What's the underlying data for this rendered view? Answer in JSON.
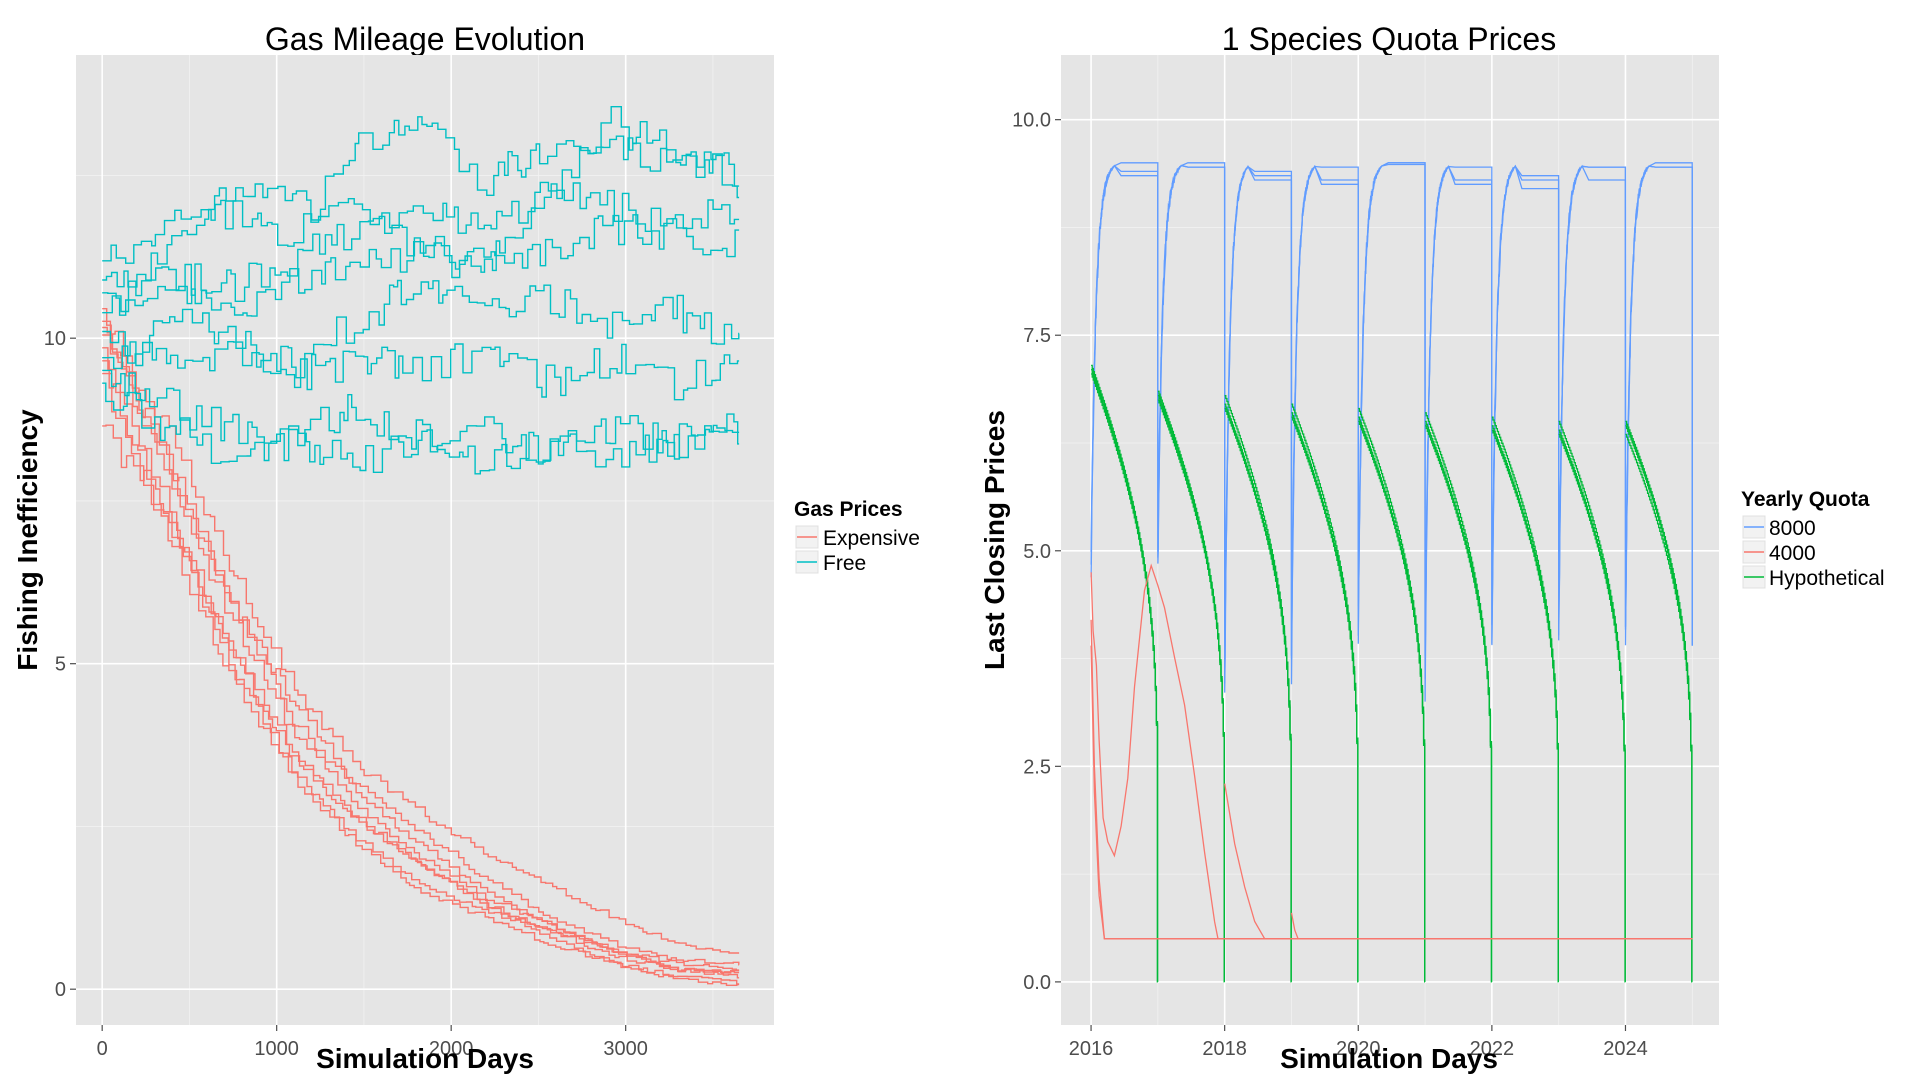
{
  "chart_data": [
    {
      "type": "line",
      "title": "Gas Mileage Evolution",
      "xlabel": "Simulation Days",
      "ylabel": "Fishing Inefficiency",
      "xlim": [
        -150,
        3850
      ],
      "ylim": [
        -0.55,
        14.35
      ],
      "xticks": [
        0,
        1000,
        2000,
        3000
      ],
      "xtick_labels": [
        "0",
        "1000",
        "2000",
        "3000"
      ],
      "yticks": [
        0,
        5,
        10
      ],
      "ytick_labels": [
        "0",
        "5",
        "10"
      ],
      "grid": true,
      "legend": {
        "title": "Gas Prices",
        "position": "right"
      },
      "step": true,
      "x_end": 3650,
      "series": [
        {
          "name": "Expensive",
          "color": "#F8766D",
          "runs": [
            {
              "x": [
                0,
                365,
                730,
                1095,
                1460,
                1825,
                2190,
                2555,
                2920,
                3285,
                3650
              ],
              "y": [
                10.0,
                8.6,
                6.5,
                4.6,
                3.4,
                2.7,
                2.1,
                1.6,
                1.1,
                0.7,
                0.5
              ]
            },
            {
              "x": [
                0,
                365,
                730,
                1095,
                1460,
                1825,
                2190,
                2555,
                2920,
                3285,
                3650
              ],
              "y": [
                10.4,
                8.0,
                6.0,
                4.4,
                3.1,
                2.4,
                1.7,
                1.1,
                0.7,
                0.45,
                0.4
              ]
            },
            {
              "x": [
                0,
                365,
                730,
                1095,
                1460,
                1825,
                2190,
                2555,
                2920,
                3285,
                3650
              ],
              "y": [
                9.8,
                7.4,
                5.2,
                3.6,
                2.6,
                1.9,
                1.3,
                0.9,
                0.6,
                0.4,
                0.3
              ]
            },
            {
              "x": [
                0,
                365,
                730,
                1095,
                1460,
                1825,
                2190,
                2555,
                2920,
                3285,
                3650
              ],
              "y": [
                9.6,
                7.2,
                5.0,
                3.3,
                2.3,
                1.6,
                1.2,
                0.9,
                0.5,
                0.3,
                0.25
              ]
            },
            {
              "x": [
                0,
                365,
                730,
                1095,
                1460,
                1825,
                2190,
                2555,
                2920,
                3285,
                3650
              ],
              "y": [
                10.2,
                7.9,
                5.7,
                3.9,
                2.8,
                2.0,
                1.4,
                1.0,
                0.6,
                0.3,
                0.2
              ]
            },
            {
              "x": [
                0,
                365,
                730,
                1095,
                1460,
                1825,
                2190,
                2555,
                2920,
                3285,
                3650
              ],
              "y": [
                9.4,
                7.0,
                4.8,
                3.2,
                2.2,
                1.5,
                1.1,
                0.7,
                0.4,
                0.2,
                0.1
              ]
            },
            {
              "x": [
                0,
                365,
                730,
                1095,
                1460,
                1825,
                2190,
                2555,
                2920,
                3285,
                3650
              ],
              "y": [
                8.6,
                7.2,
                5.2,
                3.5,
                2.6,
                1.9,
                1.3,
                0.8,
                0.4,
                0.15,
                0.05
              ]
            },
            {
              "x": [
                0,
                365,
                730,
                1095,
                1460,
                1825,
                2190,
                2555,
                2920,
                3285,
                3650
              ],
              "y": [
                10.1,
                8.2,
                6.0,
                4.1,
                3.0,
                2.2,
                1.5,
                1.0,
                0.6,
                0.3,
                0.25
              ]
            }
          ]
        },
        {
          "name": "Free",
          "color": "#00BFC4",
          "runs": [
            {
              "x": [
                0,
                365,
                730,
                1095,
                1460,
                1825,
                2190,
                2555,
                2920,
                3285,
                3650
              ],
              "y": [
                11.1,
                11.7,
                11.9,
                11.6,
                12.9,
                13.3,
                12.4,
                13.0,
                12.9,
                12.6,
                12.6
              ]
            },
            {
              "x": [
                0,
                365,
                730,
                1095,
                1460,
                1825,
                2190,
                2555,
                2920,
                3285,
                3650
              ],
              "y": [
                10.3,
                11.3,
                12.4,
                12.0,
                11.9,
                11.4,
                11.0,
                12.2,
                13.3,
                12.8,
                12.4
              ]
            },
            {
              "x": [
                0,
                365,
                730,
                1095,
                1460,
                1825,
                2190,
                2555,
                2920,
                3285,
                3650
              ],
              "y": [
                10.8,
                11.0,
                10.8,
                11.2,
                11.6,
                12.1,
                11.6,
                12.3,
                12.0,
                11.7,
                12.0
              ]
            },
            {
              "x": [
                0,
                365,
                730,
                1095,
                1460,
                1825,
                2190,
                2555,
                2920,
                3285,
                3650
              ],
              "y": [
                10.6,
                10.7,
                10.4,
                10.9,
                11.1,
                11.3,
                11.2,
                11.3,
                11.7,
                11.6,
                11.5
              ]
            },
            {
              "x": [
                0,
                365,
                730,
                1095,
                1460,
                1825,
                2190,
                2555,
                2920,
                3285,
                3650
              ],
              "y": [
                9.6,
                10.3,
                10.0,
                9.6,
                10.3,
                10.8,
                10.4,
                10.6,
                10.2,
                10.4,
                10.0
              ]
            },
            {
              "x": [
                0,
                365,
                730,
                1095,
                1460,
                1825,
                2190,
                2555,
                2920,
                3285,
                3650
              ],
              "y": [
                10.0,
                9.7,
                9.7,
                9.4,
                9.7,
                9.5,
                9.8,
                9.3,
                9.7,
                9.3,
                9.8
              ]
            },
            {
              "x": [
                0,
                365,
                730,
                1095,
                1460,
                1825,
                2190,
                2555,
                2920,
                3285,
                3650
              ],
              "y": [
                9.4,
                9.0,
                8.6,
                8.6,
                8.9,
                8.5,
                8.6,
                8.2,
                8.6,
                8.4,
                8.8
              ]
            },
            {
              "x": [
                0,
                365,
                730,
                1095,
                1460,
                1825,
                2190,
                2555,
                2920,
                3285,
                3650
              ],
              "y": [
                9.2,
                8.6,
                8.2,
                8.4,
                8.1,
                8.4,
                8.0,
                8.4,
                8.1,
                8.4,
                8.6
              ]
            }
          ]
        }
      ]
    },
    {
      "type": "line",
      "title": "1 Species Quota Prices",
      "xlabel": "Simulation Days",
      "ylabel": "Last Closing Prices",
      "xlim": [
        2015.55,
        2025.4
      ],
      "ylim": [
        -0.5,
        10.75
      ],
      "xticks": [
        2016,
        2018,
        2020,
        2022,
        2024
      ],
      "xtick_labels": [
        "2016",
        "2018",
        "2020",
        "2022",
        "2024"
      ],
      "yticks": [
        0,
        2.5,
        5,
        7.5,
        10
      ],
      "ytick_labels": [
        "0.0",
        "2.5",
        "5.0",
        "7.5",
        "10.0"
      ],
      "grid": true,
      "legend": {
        "title": "Yearly Quota",
        "position": "right"
      },
      "series": [
        {
          "name": "8000",
          "color": "#619CFF",
          "years": [
            2016,
            2017,
            2018,
            2019,
            2020,
            2021,
            2022,
            2023,
            2024
          ],
          "year_start": [
            4.8,
            4.9,
            3.4,
            3.7,
            4.1,
            3.5,
            4.0,
            4.0,
            4.0
          ],
          "plateau": [
            9.5,
            9.5,
            9.5,
            9.5,
            9.5,
            9.5,
            9.5,
            9.5,
            9.5
          ],
          "year_end_levels": [
            [
              9.5,
              9.4,
              9.35
            ],
            [
              9.5,
              9.45,
              9.45
            ],
            [
              9.4,
              9.35,
              9.3
            ],
            [
              9.45,
              9.3,
              9.25
            ],
            [
              9.5,
              9.5,
              9.48
            ],
            [
              9.45,
              9.3,
              9.25
            ],
            [
              9.35,
              9.3,
              9.2
            ],
            [
              9.45,
              9.45,
              9.3
            ],
            [
              9.5,
              9.45,
              9.45
            ]
          ],
          "final": 3.9
        },
        {
          "name": "4000",
          "color": "#F8766D",
          "points": [
            {
              "x": 2016.0,
              "y": 4.75
            },
            {
              "x": 2016.03,
              "y": 4.1
            },
            {
              "x": 2016.08,
              "y": 3.7
            },
            {
              "x": 2016.12,
              "y": 2.8
            },
            {
              "x": 2016.18,
              "y": 1.9
            },
            {
              "x": 2016.25,
              "y": 1.6
            },
            {
              "x": 2016.35,
              "y": 1.5
            },
            {
              "x": 2016.45,
              "y": 1.8
            },
            {
              "x": 2016.55,
              "y": 2.4
            },
            {
              "x": 2016.65,
              "y": 3.4
            },
            {
              "x": 2016.8,
              "y": 4.6
            },
            {
              "x": 2016.9,
              "y": 4.8
            },
            {
              "x": 2017.0,
              "y": 4.6
            },
            {
              "x": 2017.1,
              "y": 4.3
            },
            {
              "x": 2017.25,
              "y": 3.8
            },
            {
              "x": 2017.4,
              "y": 3.2
            },
            {
              "x": 2017.55,
              "y": 2.4
            },
            {
              "x": 2017.7,
              "y": 1.5
            },
            {
              "x": 2017.85,
              "y": 0.7
            },
            {
              "x": 2017.9,
              "y": 0.5
            },
            {
              "x": 2025.0,
              "y": 0.5
            }
          ],
          "extra_runs": [
            {
              "x": [
                2016.0,
                2016.05,
                2016.12,
                2016.2,
                2025.0
              ],
              "y": [
                4.2,
                2.5,
                1.2,
                0.5,
                0.5
              ]
            },
            {
              "x": [
                2016.0,
                2016.05,
                2016.12,
                2016.2,
                2025.0
              ],
              "y": [
                3.9,
                2.2,
                1.0,
                0.5,
                0.5
              ]
            },
            {
              "x": [
                2018.0,
                2018.15,
                2018.3,
                2018.45,
                2018.6
              ],
              "y": [
                2.3,
                1.6,
                1.1,
                0.7,
                0.5
              ]
            },
            {
              "x": [
                2019.0,
                2019.05,
                2019.1
              ],
              "y": [
                0.8,
                0.6,
                0.5
              ]
            }
          ]
        },
        {
          "name": "Hypothetical",
          "color": "#00BA38",
          "years": [
            2016,
            2017,
            2018,
            2019,
            2020,
            2021,
            2022,
            2023,
            2024
          ],
          "start_levels": [
            [
              7.15,
              7.1,
              7.05
            ],
            [
              6.85,
              6.8,
              6.75
            ],
            [
              6.8,
              6.7,
              6.65
            ],
            [
              6.7,
              6.6,
              6.55
            ],
            [
              6.65,
              6.55,
              6.5
            ],
            [
              6.6,
              6.5,
              6.45
            ],
            [
              6.55,
              6.45,
              6.4
            ],
            [
              6.5,
              6.4,
              6.35
            ],
            [
              6.5,
              6.45,
              6.35
            ]
          ],
          "year_end": 0.0
        }
      ]
    }
  ]
}
